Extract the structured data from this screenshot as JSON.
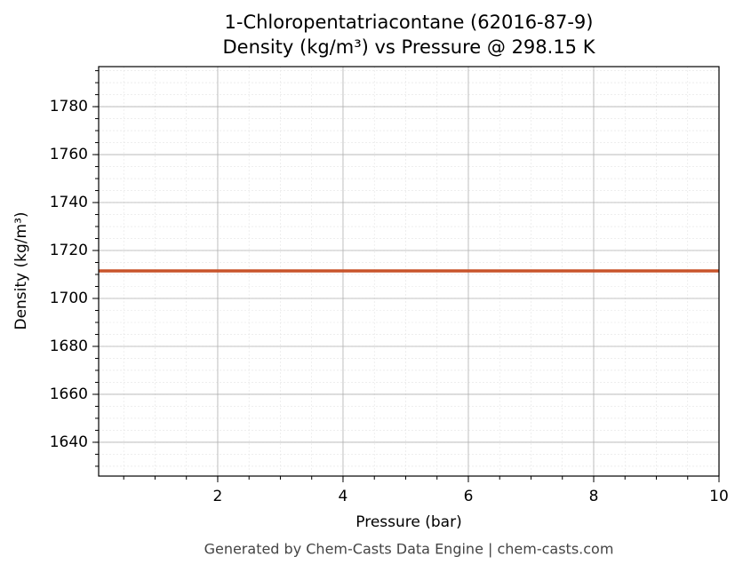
{
  "chart_data": {
    "type": "line",
    "title": "1-Chloropentatriacontane (62016-87-9)",
    "subtitle": "Density (kg/m³) vs Pressure @ 298.15 K",
    "x_label": "Pressure (bar)",
    "y_label": "Density (kg/m³)",
    "footer": "Generated by Chem-Casts Data Engine | chem-casts.com",
    "x": [
      0.1,
      10
    ],
    "series": [
      {
        "name": "Density",
        "color": "#c8532a",
        "values": [
          1711.5,
          1711.5
        ]
      }
    ],
    "xlim": [
      0.1,
      10
    ],
    "xticks": [
      2,
      4,
      6,
      8,
      10
    ],
    "ylim": [
      1625.9,
      1796.7
    ],
    "yticks": [
      1640,
      1660,
      1680,
      1700,
      1720,
      1740,
      1760,
      1780
    ],
    "grid": true,
    "minor_grid": true
  }
}
